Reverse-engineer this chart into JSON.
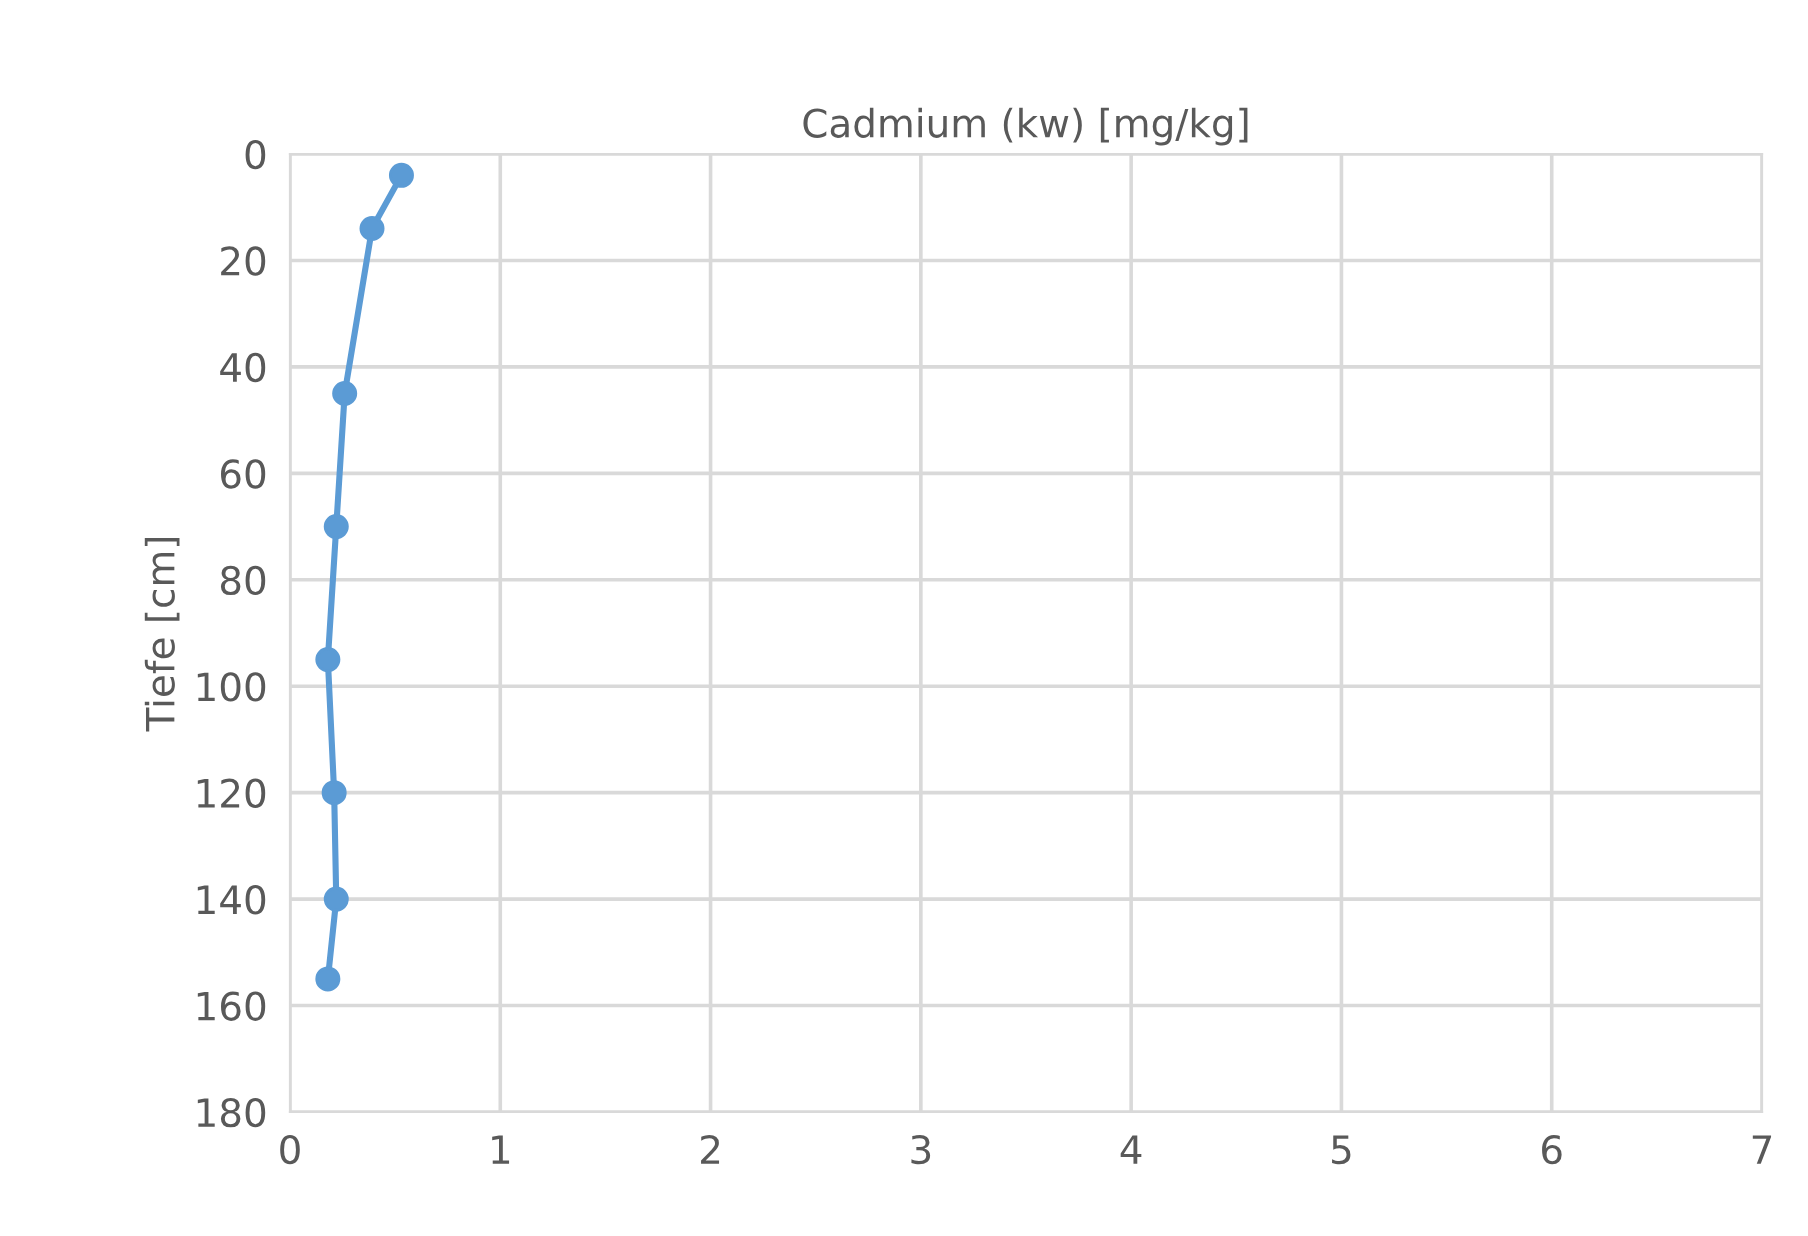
{
  "chart_data": {
    "type": "line",
    "title": "Cadmium (kw) [mg/kg]",
    "ylabel": "Tiefe [cm]",
    "x": [
      0.53,
      0.39,
      0.26,
      0.22,
      0.18,
      0.21,
      0.22,
      0.18
    ],
    "series": [
      {
        "color": "#5b9bd5",
        "values": [
          4,
          14,
          45,
          70,
          95,
          120,
          140,
          155
        ]
      }
    ],
    "xlim": [
      0,
      7
    ],
    "xticks": [
      0,
      1,
      2,
      3,
      4,
      5,
      6,
      7
    ],
    "ylim": [
      180,
      0
    ],
    "yticks": [
      0,
      20,
      40,
      60,
      80,
      100,
      120,
      140,
      160,
      180
    ],
    "grid": true,
    "marker": "circle",
    "line_style": "solid"
  }
}
